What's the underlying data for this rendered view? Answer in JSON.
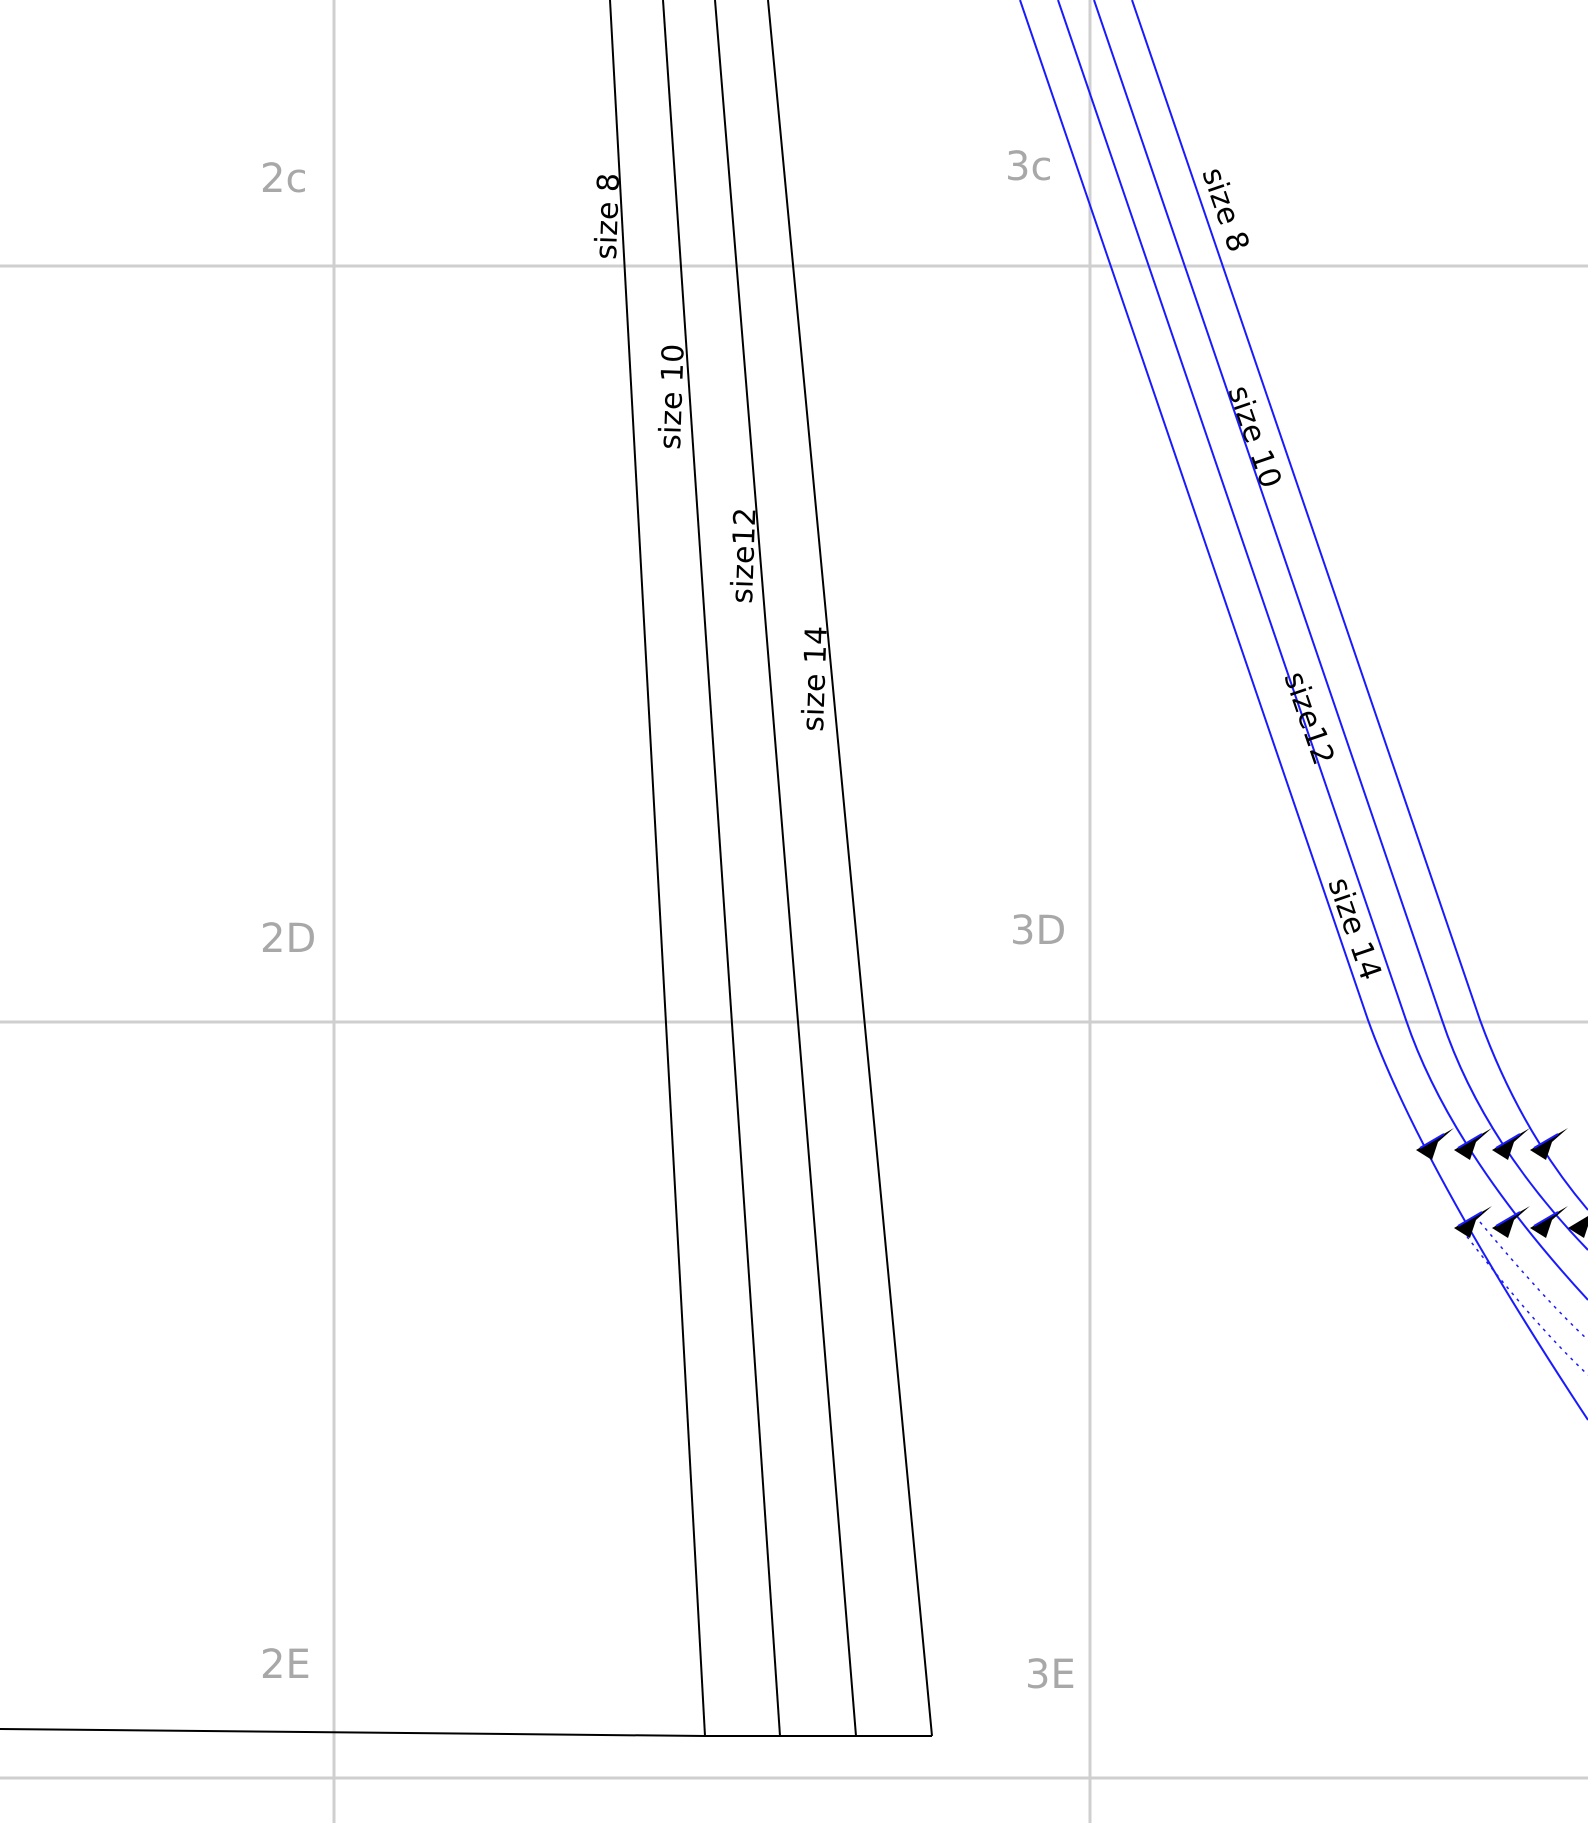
{
  "grid": {
    "cells": [
      {
        "id": "2c",
        "label": "2c"
      },
      {
        "id": "3c",
        "label": "3c"
      },
      {
        "id": "2D",
        "label": "2D"
      },
      {
        "id": "3D",
        "label": "3D"
      },
      {
        "id": "2E",
        "label": "2E"
      },
      {
        "id": "3E",
        "label": "3E"
      }
    ]
  },
  "left_piece": {
    "color": "#000000",
    "size_labels": [
      "size 8",
      "size 10",
      "size12",
      "size 14"
    ]
  },
  "right_piece": {
    "color": "#1a1aff",
    "size_labels": [
      "size 8",
      "size 10",
      "size12",
      "size 14"
    ]
  }
}
